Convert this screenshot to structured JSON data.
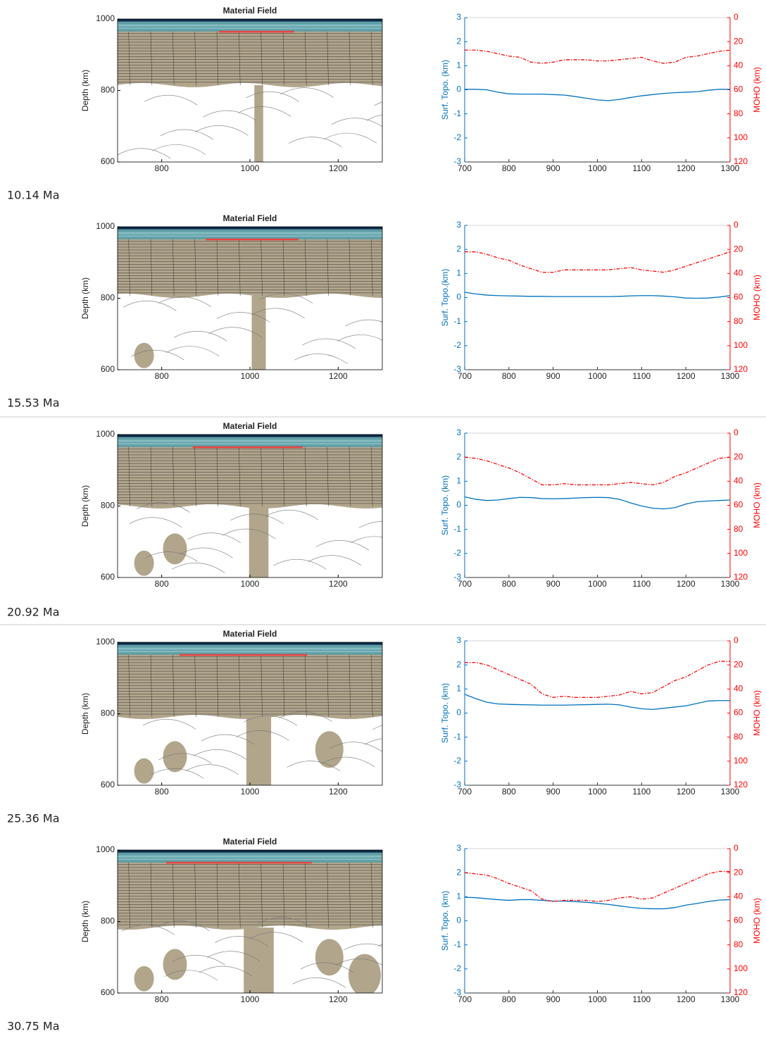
{
  "chart_data": [
    {
      "type": "field",
      "title": "Material Field",
      "ylabel": "Depth (km)",
      "annotation": "10.14 Ma",
      "xlim": [
        700,
        1300
      ],
      "xticks": [
        800,
        1000,
        1200
      ],
      "ylim": [
        600,
        1000
      ],
      "yticks": [
        600,
        800,
        1000
      ]
    },
    {
      "type": "line",
      "ylabel": "Surf. Topo. (km)",
      "y2label": "MOHO (km)",
      "x": [
        700,
        725,
        750,
        775,
        800,
        825,
        850,
        875,
        900,
        925,
        950,
        975,
        1000,
        1025,
        1050,
        1075,
        1100,
        1125,
        1150,
        1175,
        1200,
        1225,
        1250,
        1275,
        1300
      ],
      "xlim": [
        700,
        1300
      ],
      "xticks": [
        700,
        800,
        900,
        1000,
        1100,
        1200,
        1300
      ],
      "ylim": [
        -3,
        3
      ],
      "yticks": [
        -3,
        -2,
        -1,
        0,
        1,
        2,
        3
      ],
      "y2lim": [
        120,
        0
      ],
      "y2ticks": [
        0,
        20,
        40,
        60,
        80,
        100,
        120
      ],
      "ycolor": "#0072bd",
      "y2color": "#ff0000",
      "series": [
        {
          "color": "#0072bd",
          "values": [
            0.02,
            0.02,
            0.0,
            -0.1,
            -0.17,
            -0.18,
            -0.18,
            -0.18,
            -0.2,
            -0.22,
            -0.28,
            -0.35,
            -0.42,
            -0.45,
            -0.4,
            -0.32,
            -0.25,
            -0.2,
            -0.15,
            -0.12,
            -0.1,
            -0.08,
            -0.02,
            0.02,
            0.02
          ]
        },
        {
          "color": "#ff0000",
          "axis": "y2",
          "style": "dashdot",
          "values": [
            27,
            27,
            28,
            30,
            32,
            33,
            37,
            38,
            37,
            35,
            35,
            35,
            36,
            36,
            35,
            34,
            33,
            36,
            38,
            37,
            33,
            32,
            30,
            28,
            27
          ]
        }
      ]
    },
    {
      "type": "field",
      "title": "Material Field",
      "ylabel": "Depth (km)",
      "annotation": "15.53 Ma",
      "xlim": [
        700,
        1300
      ],
      "xticks": [
        800,
        1000,
        1200
      ],
      "ylim": [
        600,
        1000
      ],
      "yticks": [
        600,
        800,
        1000
      ]
    },
    {
      "type": "line",
      "ylabel": "Surf. Topo.(km)",
      "y2label": "MOHO  (km)",
      "x": [
        700,
        725,
        750,
        775,
        800,
        825,
        850,
        875,
        900,
        925,
        950,
        975,
        1000,
        1025,
        1050,
        1075,
        1100,
        1125,
        1150,
        1175,
        1200,
        1225,
        1250,
        1275,
        1300
      ],
      "xlim": [
        700,
        1300
      ],
      "xticks": [
        700,
        800,
        900,
        1000,
        1100,
        1200,
        1300
      ],
      "ylim": [
        -3,
        3
      ],
      "yticks": [
        -3,
        -2,
        -1,
        0,
        1,
        2,
        3
      ],
      "y2lim": [
        120,
        0
      ],
      "y2ticks": [
        0,
        20,
        40,
        60,
        80,
        100,
        120
      ],
      "ycolor": "#0072bd",
      "y2color": "#ff0000",
      "series": [
        {
          "color": "#0072bd",
          "values": [
            0.22,
            0.15,
            0.1,
            0.08,
            0.07,
            0.06,
            0.05,
            0.05,
            0.04,
            0.04,
            0.04,
            0.04,
            0.04,
            0.04,
            0.05,
            0.07,
            0.08,
            0.08,
            0.06,
            0.03,
            -0.02,
            -0.03,
            -0.02,
            0.02,
            0.08
          ]
        },
        {
          "color": "#ff0000",
          "axis": "y2",
          "style": "dashdot",
          "values": [
            22,
            22,
            24,
            27,
            29,
            33,
            36,
            39,
            39,
            37,
            37,
            37,
            37,
            37,
            36,
            35,
            37,
            38,
            39,
            37,
            34,
            31,
            28,
            25,
            22
          ]
        }
      ]
    },
    {
      "type": "field",
      "title": "Material Field",
      "ylabel": "Depth (km)",
      "annotation": "20.92 Ma",
      "xlim": [
        700,
        1300
      ],
      "xticks": [
        800,
        1000,
        1200
      ],
      "ylim": [
        600,
        1000
      ],
      "yticks": [
        600,
        800,
        1000
      ]
    },
    {
      "type": "line",
      "ylabel": "Surf. Topo. (km)",
      "y2label": "MOHO (km)",
      "x": [
        700,
        725,
        750,
        775,
        800,
        825,
        850,
        875,
        900,
        925,
        950,
        975,
        1000,
        1025,
        1050,
        1075,
        1100,
        1125,
        1150,
        1175,
        1200,
        1225,
        1250,
        1275,
        1300
      ],
      "xlim": [
        700,
        1300
      ],
      "xticks": [
        700,
        800,
        900,
        1000,
        1100,
        1200,
        1300
      ],
      "ylim": [
        -3,
        3
      ],
      "yticks": [
        -3,
        -2,
        -1,
        0,
        1,
        2,
        3
      ],
      "y2lim": [
        120,
        0
      ],
      "y2ticks": [
        0,
        20,
        40,
        60,
        80,
        100,
        120
      ],
      "ycolor": "#0072bd",
      "y2color": "#ff0000",
      "series": [
        {
          "color": "#0072bd",
          "values": [
            0.35,
            0.25,
            0.2,
            0.22,
            0.28,
            0.33,
            0.32,
            0.28,
            0.27,
            0.28,
            0.3,
            0.32,
            0.33,
            0.32,
            0.25,
            0.1,
            -0.03,
            -0.12,
            -0.15,
            -0.1,
            0.05,
            0.15,
            0.18,
            0.2,
            0.22
          ]
        },
        {
          "color": "#ff0000",
          "axis": "y2",
          "style": "dashdot",
          "values": [
            20,
            21,
            23,
            26,
            29,
            33,
            38,
            43,
            43,
            42,
            43,
            43,
            43,
            43,
            42,
            41,
            42,
            43,
            41,
            36,
            33,
            29,
            25,
            21,
            20
          ]
        }
      ]
    },
    {
      "type": "field",
      "title": "Material Field",
      "ylabel": "Depth (km)",
      "annotation": "25.36 Ma",
      "xlim": [
        700,
        1300
      ],
      "xticks": [
        800,
        1000,
        1200
      ],
      "ylim": [
        600,
        1000
      ],
      "yticks": [
        600,
        800,
        1000
      ]
    },
    {
      "type": "line",
      "ylabel": "Surf. Topo. (km)",
      "y2label": "MOHO (km)",
      "x": [
        700,
        725,
        750,
        775,
        800,
        825,
        850,
        875,
        900,
        925,
        950,
        975,
        1000,
        1025,
        1050,
        1075,
        1100,
        1125,
        1150,
        1175,
        1200,
        1225,
        1250,
        1275,
        1300
      ],
      "xlim": [
        700,
        1300
      ],
      "xticks": [
        700,
        800,
        900,
        1000,
        1100,
        1200,
        1300
      ],
      "ylim": [
        -3,
        3
      ],
      "yticks": [
        -3,
        -2,
        -1,
        0,
        1,
        2,
        3
      ],
      "y2lim": [
        120,
        0
      ],
      "y2ticks": [
        0,
        20,
        40,
        60,
        80,
        100,
        120
      ],
      "ycolor": "#0072bd",
      "y2color": "#ff0000",
      "series": [
        {
          "color": "#0072bd",
          "values": [
            0.78,
            0.6,
            0.45,
            0.38,
            0.36,
            0.35,
            0.34,
            0.33,
            0.33,
            0.33,
            0.34,
            0.35,
            0.36,
            0.37,
            0.34,
            0.25,
            0.18,
            0.15,
            0.2,
            0.25,
            0.3,
            0.4,
            0.5,
            0.52,
            0.52
          ]
        },
        {
          "color": "#ff0000",
          "axis": "y2",
          "style": "dashdot",
          "values": [
            18,
            18,
            20,
            24,
            28,
            32,
            36,
            44,
            47,
            46,
            47,
            47,
            47,
            46,
            45,
            42,
            44,
            43,
            38,
            33,
            30,
            25,
            20,
            17,
            17
          ]
        }
      ]
    },
    {
      "type": "field",
      "title": "Material Field",
      "ylabel": "Depth (km)",
      "annotation": "30.75 Ma",
      "xlim": [
        700,
        1300
      ],
      "xticks": [
        800,
        1000,
        1200
      ],
      "ylim": [
        600,
        1000
      ],
      "yticks": [
        600,
        800,
        1000
      ]
    },
    {
      "type": "line",
      "ylabel": "Surf. Topo. (km)",
      "y2label": "MOHO (km)",
      "x": [
        700,
        725,
        750,
        775,
        800,
        825,
        850,
        875,
        900,
        925,
        950,
        975,
        1000,
        1025,
        1050,
        1075,
        1100,
        1125,
        1150,
        1175,
        1200,
        1225,
        1250,
        1275,
        1300
      ],
      "xlim": [
        700,
        1300
      ],
      "xticks": [
        700,
        800,
        900,
        1000,
        1100,
        1200,
        1300
      ],
      "ylim": [
        -3,
        3
      ],
      "yticks": [
        -3,
        -2,
        -1,
        0,
        1,
        2,
        3
      ],
      "y2lim": [
        120,
        0
      ],
      "y2ticks": [
        0,
        20,
        40,
        60,
        80,
        100,
        120
      ],
      "ycolor": "#0072bd",
      "y2color": "#ff0000",
      "series": [
        {
          "color": "#0072bd",
          "values": [
            0.98,
            0.96,
            0.92,
            0.88,
            0.85,
            0.88,
            0.88,
            0.85,
            0.82,
            0.82,
            0.8,
            0.77,
            0.73,
            0.68,
            0.62,
            0.56,
            0.52,
            0.5,
            0.5,
            0.55,
            0.65,
            0.72,
            0.8,
            0.86,
            0.88
          ]
        },
        {
          "color": "#ff0000",
          "axis": "y2",
          "style": "dashdot",
          "values": [
            20,
            21,
            22,
            25,
            29,
            32,
            35,
            42,
            44,
            43,
            43,
            43,
            44,
            43,
            41,
            40,
            42,
            41,
            37,
            33,
            29,
            25,
            21,
            19,
            19
          ]
        }
      ]
    }
  ]
}
